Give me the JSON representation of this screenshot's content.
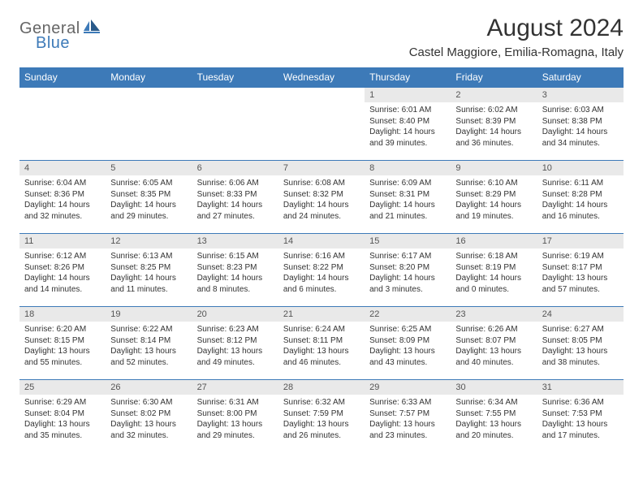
{
  "colors": {
    "header_bg": "#3d7ab8",
    "header_text": "#ffffff",
    "daynum_bg": "#e9e9e9",
    "daynum_text": "#555555",
    "body_text": "#333333",
    "cell_border": "#3d7ab8",
    "logo_gray": "#666666",
    "logo_blue": "#3d7ab8",
    "page_bg": "#ffffff"
  },
  "typography": {
    "font_family": "Arial, Helvetica, sans-serif",
    "title_size_pt": 22,
    "location_size_pt": 11,
    "weekday_size_pt": 9,
    "daynum_size_pt": 8,
    "cell_size_pt": 7.5
  },
  "logo": {
    "part1": "General",
    "part2": "Blue"
  },
  "title": "August 2024",
  "location": "Castel Maggiore, Emilia-Romagna, Italy",
  "weekdays": [
    "Sunday",
    "Monday",
    "Tuesday",
    "Wednesday",
    "Thursday",
    "Friday",
    "Saturday"
  ],
  "weeks": [
    [
      null,
      null,
      null,
      null,
      {
        "n": "1",
        "sr": "Sunrise: 6:01 AM",
        "ss": "Sunset: 8:40 PM",
        "d1": "Daylight: 14 hours",
        "d2": "and 39 minutes."
      },
      {
        "n": "2",
        "sr": "Sunrise: 6:02 AM",
        "ss": "Sunset: 8:39 PM",
        "d1": "Daylight: 14 hours",
        "d2": "and 36 minutes."
      },
      {
        "n": "3",
        "sr": "Sunrise: 6:03 AM",
        "ss": "Sunset: 8:38 PM",
        "d1": "Daylight: 14 hours",
        "d2": "and 34 minutes."
      }
    ],
    [
      {
        "n": "4",
        "sr": "Sunrise: 6:04 AM",
        "ss": "Sunset: 8:36 PM",
        "d1": "Daylight: 14 hours",
        "d2": "and 32 minutes."
      },
      {
        "n": "5",
        "sr": "Sunrise: 6:05 AM",
        "ss": "Sunset: 8:35 PM",
        "d1": "Daylight: 14 hours",
        "d2": "and 29 minutes."
      },
      {
        "n": "6",
        "sr": "Sunrise: 6:06 AM",
        "ss": "Sunset: 8:33 PM",
        "d1": "Daylight: 14 hours",
        "d2": "and 27 minutes."
      },
      {
        "n": "7",
        "sr": "Sunrise: 6:08 AM",
        "ss": "Sunset: 8:32 PM",
        "d1": "Daylight: 14 hours",
        "d2": "and 24 minutes."
      },
      {
        "n": "8",
        "sr": "Sunrise: 6:09 AM",
        "ss": "Sunset: 8:31 PM",
        "d1": "Daylight: 14 hours",
        "d2": "and 21 minutes."
      },
      {
        "n": "9",
        "sr": "Sunrise: 6:10 AM",
        "ss": "Sunset: 8:29 PM",
        "d1": "Daylight: 14 hours",
        "d2": "and 19 minutes."
      },
      {
        "n": "10",
        "sr": "Sunrise: 6:11 AM",
        "ss": "Sunset: 8:28 PM",
        "d1": "Daylight: 14 hours",
        "d2": "and 16 minutes."
      }
    ],
    [
      {
        "n": "11",
        "sr": "Sunrise: 6:12 AM",
        "ss": "Sunset: 8:26 PM",
        "d1": "Daylight: 14 hours",
        "d2": "and 14 minutes."
      },
      {
        "n": "12",
        "sr": "Sunrise: 6:13 AM",
        "ss": "Sunset: 8:25 PM",
        "d1": "Daylight: 14 hours",
        "d2": "and 11 minutes."
      },
      {
        "n": "13",
        "sr": "Sunrise: 6:15 AM",
        "ss": "Sunset: 8:23 PM",
        "d1": "Daylight: 14 hours",
        "d2": "and 8 minutes."
      },
      {
        "n": "14",
        "sr": "Sunrise: 6:16 AM",
        "ss": "Sunset: 8:22 PM",
        "d1": "Daylight: 14 hours",
        "d2": "and 6 minutes."
      },
      {
        "n": "15",
        "sr": "Sunrise: 6:17 AM",
        "ss": "Sunset: 8:20 PM",
        "d1": "Daylight: 14 hours",
        "d2": "and 3 minutes."
      },
      {
        "n": "16",
        "sr": "Sunrise: 6:18 AM",
        "ss": "Sunset: 8:19 PM",
        "d1": "Daylight: 14 hours",
        "d2": "and 0 minutes."
      },
      {
        "n": "17",
        "sr": "Sunrise: 6:19 AM",
        "ss": "Sunset: 8:17 PM",
        "d1": "Daylight: 13 hours",
        "d2": "and 57 minutes."
      }
    ],
    [
      {
        "n": "18",
        "sr": "Sunrise: 6:20 AM",
        "ss": "Sunset: 8:15 PM",
        "d1": "Daylight: 13 hours",
        "d2": "and 55 minutes."
      },
      {
        "n": "19",
        "sr": "Sunrise: 6:22 AM",
        "ss": "Sunset: 8:14 PM",
        "d1": "Daylight: 13 hours",
        "d2": "and 52 minutes."
      },
      {
        "n": "20",
        "sr": "Sunrise: 6:23 AM",
        "ss": "Sunset: 8:12 PM",
        "d1": "Daylight: 13 hours",
        "d2": "and 49 minutes."
      },
      {
        "n": "21",
        "sr": "Sunrise: 6:24 AM",
        "ss": "Sunset: 8:11 PM",
        "d1": "Daylight: 13 hours",
        "d2": "and 46 minutes."
      },
      {
        "n": "22",
        "sr": "Sunrise: 6:25 AM",
        "ss": "Sunset: 8:09 PM",
        "d1": "Daylight: 13 hours",
        "d2": "and 43 minutes."
      },
      {
        "n": "23",
        "sr": "Sunrise: 6:26 AM",
        "ss": "Sunset: 8:07 PM",
        "d1": "Daylight: 13 hours",
        "d2": "and 40 minutes."
      },
      {
        "n": "24",
        "sr": "Sunrise: 6:27 AM",
        "ss": "Sunset: 8:05 PM",
        "d1": "Daylight: 13 hours",
        "d2": "and 38 minutes."
      }
    ],
    [
      {
        "n": "25",
        "sr": "Sunrise: 6:29 AM",
        "ss": "Sunset: 8:04 PM",
        "d1": "Daylight: 13 hours",
        "d2": "and 35 minutes."
      },
      {
        "n": "26",
        "sr": "Sunrise: 6:30 AM",
        "ss": "Sunset: 8:02 PM",
        "d1": "Daylight: 13 hours",
        "d2": "and 32 minutes."
      },
      {
        "n": "27",
        "sr": "Sunrise: 6:31 AM",
        "ss": "Sunset: 8:00 PM",
        "d1": "Daylight: 13 hours",
        "d2": "and 29 minutes."
      },
      {
        "n": "28",
        "sr": "Sunrise: 6:32 AM",
        "ss": "Sunset: 7:59 PM",
        "d1": "Daylight: 13 hours",
        "d2": "and 26 minutes."
      },
      {
        "n": "29",
        "sr": "Sunrise: 6:33 AM",
        "ss": "Sunset: 7:57 PM",
        "d1": "Daylight: 13 hours",
        "d2": "and 23 minutes."
      },
      {
        "n": "30",
        "sr": "Sunrise: 6:34 AM",
        "ss": "Sunset: 7:55 PM",
        "d1": "Daylight: 13 hours",
        "d2": "and 20 minutes."
      },
      {
        "n": "31",
        "sr": "Sunrise: 6:36 AM",
        "ss": "Sunset: 7:53 PM",
        "d1": "Daylight: 13 hours",
        "d2": "and 17 minutes."
      }
    ]
  ]
}
